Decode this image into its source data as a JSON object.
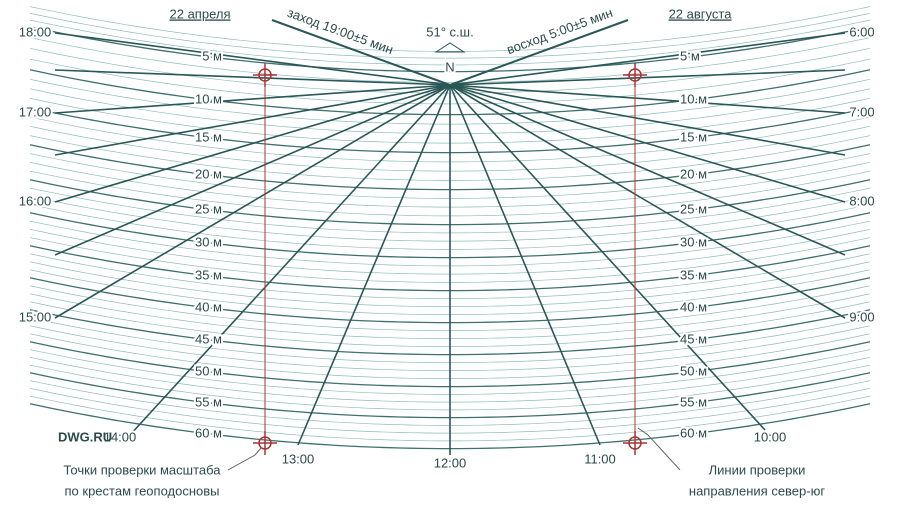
{
  "header": {
    "left_date": "22 апреля",
    "right_date": "22 августа",
    "latitude": "51° с.ш.",
    "north": "N",
    "sunset": "заход 19:00±5 мин",
    "sunrise": "восход 5:00±5 мин"
  },
  "hours": {
    "left": [
      "18:00",
      "17:00",
      "16:00",
      "15:00"
    ],
    "right": [
      "6:00",
      "7:00",
      "8:00",
      "9:00"
    ],
    "bottom": [
      "14:00",
      "13:00",
      "12:00",
      "11:00",
      "10:00"
    ]
  },
  "distances": {
    "left": [
      "5 м",
      "10 м",
      "15 м",
      "20 м",
      "25 м",
      "30 м",
      "35 м",
      "40 м",
      "45 м",
      "50 м",
      "55 м",
      "60 м"
    ],
    "right": [
      "5 м",
      "10 м",
      "15 м",
      "20 м",
      "25 м",
      "30 м",
      "35 м",
      "40 м",
      "45 м",
      "50 м",
      "55 м",
      "60 м"
    ]
  },
  "watermark": "DWG.RU",
  "notes": {
    "scale_check": [
      "Точки проверки масштаба",
      "по крестам геоподосновы"
    ],
    "direction_check": [
      "Линии проверки",
      "направления север-юг"
    ]
  }
}
